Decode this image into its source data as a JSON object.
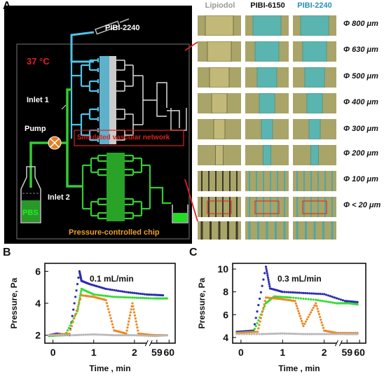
{
  "panel_labels": {
    "a": "A",
    "b": "B",
    "c": "C"
  },
  "panel_a": {
    "temperature": "37 °C",
    "syringe_label": "PIBI-2240",
    "inlet1": "Inlet 1",
    "inlet2": "Inlet 2",
    "pump": "Pump",
    "pbs": "PBS",
    "network_label": "Simulated vascular network",
    "chip_label": "Pressure-controlled chip",
    "columns": [
      "Lipiodol",
      "PIBI-6150",
      "PIBI-2240"
    ],
    "diameters": [
      "Φ 800 μm",
      "Φ 630 μm",
      "Φ 500 μm",
      "Φ 400 μm",
      "Φ 300 μm",
      "Φ 200 μm",
      "Φ 100 μm",
      "Φ < 20 μm"
    ],
    "colors": {
      "background": "#000000",
      "network": "#4fc3e8",
      "chip": "#33cc33",
      "label_red": "#e02020",
      "label_orange": "#f0a020",
      "tile_tan": "#b9ad6e",
      "tile_cyan": "#5ab5b0"
    }
  },
  "chart_data": [
    {
      "type": "scatter",
      "annotation": "0.1 mL/min",
      "ylabel": "Pressure, Pa",
      "xlabel": "Time , min",
      "xticks": [
        "0",
        "1",
        "2",
        "59",
        "60"
      ],
      "yticks": [
        "2",
        "4",
        "6"
      ],
      "ylim": [
        1.5,
        6.5
      ],
      "xlim": [
        -0.2,
        3.0
      ],
      "series": [
        {
          "color": "#2b2bb0",
          "points": [
            [
              -0.1,
              2.0
            ],
            [
              0.1,
              2.1
            ],
            [
              0.4,
              2.0
            ],
            [
              0.65,
              6.0
            ],
            [
              0.7,
              5.4
            ],
            [
              0.9,
              5.2
            ],
            [
              1.3,
              4.9
            ],
            [
              1.8,
              4.7
            ],
            [
              2.3,
              4.55
            ],
            [
              2.7,
              4.5
            ]
          ]
        },
        {
          "color": "#33dd33",
          "points": [
            [
              -0.1,
              1.95
            ],
            [
              0.3,
              2.0
            ],
            [
              0.6,
              3.5
            ],
            [
              0.7,
              4.9
            ],
            [
              1.0,
              4.55
            ],
            [
              1.5,
              4.4
            ],
            [
              2.0,
              4.35
            ],
            [
              2.5,
              4.3
            ],
            [
              2.8,
              4.3
            ]
          ]
        },
        {
          "color": "#ee8822",
          "points": [
            [
              -0.1,
              2.0
            ],
            [
              0.4,
              2.1
            ],
            [
              0.7,
              4.5
            ],
            [
              1.0,
              4.4
            ],
            [
              1.3,
              4.2
            ],
            [
              1.5,
              2.3
            ],
            [
              1.8,
              2.1
            ],
            [
              1.95,
              4.0
            ],
            [
              2.1,
              2.1
            ],
            [
              2.5,
              2.0
            ],
            [
              2.8,
              2.0
            ]
          ]
        },
        {
          "color": "#b8b8b8",
          "points": [
            [
              -0.1,
              2.0
            ],
            [
              0.5,
              2.0
            ],
            [
              1.0,
              2.05
            ],
            [
              1.5,
              2.0
            ],
            [
              2.0,
              2.0
            ],
            [
              2.5,
              1.95
            ],
            [
              2.8,
              2.0
            ]
          ]
        }
      ]
    },
    {
      "type": "scatter",
      "annotation": "0.3 mL/min",
      "ylabel": "Pressure, Pa",
      "xlabel": "Time , min",
      "xticks": [
        "0",
        "1",
        "2",
        "59",
        "60"
      ],
      "yticks": [
        "4",
        "6",
        "8",
        "10"
      ],
      "ylim": [
        3.5,
        10.5
      ],
      "xlim": [
        -0.2,
        3.0
      ],
      "series": [
        {
          "color": "#2b2bb0",
          "points": [
            [
              -0.1,
              4.5
            ],
            [
              0.3,
              4.6
            ],
            [
              0.6,
              10.2
            ],
            [
              0.7,
              8.3
            ],
            [
              1.0,
              8.0
            ],
            [
              1.5,
              7.9
            ],
            [
              2.0,
              7.8
            ],
            [
              2.5,
              7.2
            ],
            [
              2.8,
              7.1
            ]
          ]
        },
        {
          "color": "#33dd33",
          "points": [
            [
              -0.1,
              4.4
            ],
            [
              0.3,
              4.5
            ],
            [
              0.6,
              7.0
            ],
            [
              0.8,
              7.6
            ],
            [
              1.2,
              7.5
            ],
            [
              1.8,
              7.3
            ],
            [
              2.3,
              7.0
            ],
            [
              2.6,
              7.0
            ],
            [
              2.8,
              6.9
            ]
          ]
        },
        {
          "color": "#ee8822",
          "points": [
            [
              -0.1,
              4.4
            ],
            [
              0.4,
              4.5
            ],
            [
              0.6,
              7.5
            ],
            [
              0.9,
              7.4
            ],
            [
              1.3,
              7.2
            ],
            [
              1.5,
              5.0
            ],
            [
              1.8,
              7.0
            ],
            [
              2.0,
              4.6
            ],
            [
              2.3,
              4.4
            ],
            [
              2.8,
              4.4
            ]
          ]
        },
        {
          "color": "#b8b8b8",
          "points": [
            [
              -0.1,
              4.3
            ],
            [
              0.5,
              4.3
            ],
            [
              1.0,
              4.35
            ],
            [
              1.5,
              4.3
            ],
            [
              2.0,
              4.3
            ],
            [
              2.5,
              4.3
            ],
            [
              2.8,
              4.3
            ]
          ]
        }
      ]
    }
  ]
}
